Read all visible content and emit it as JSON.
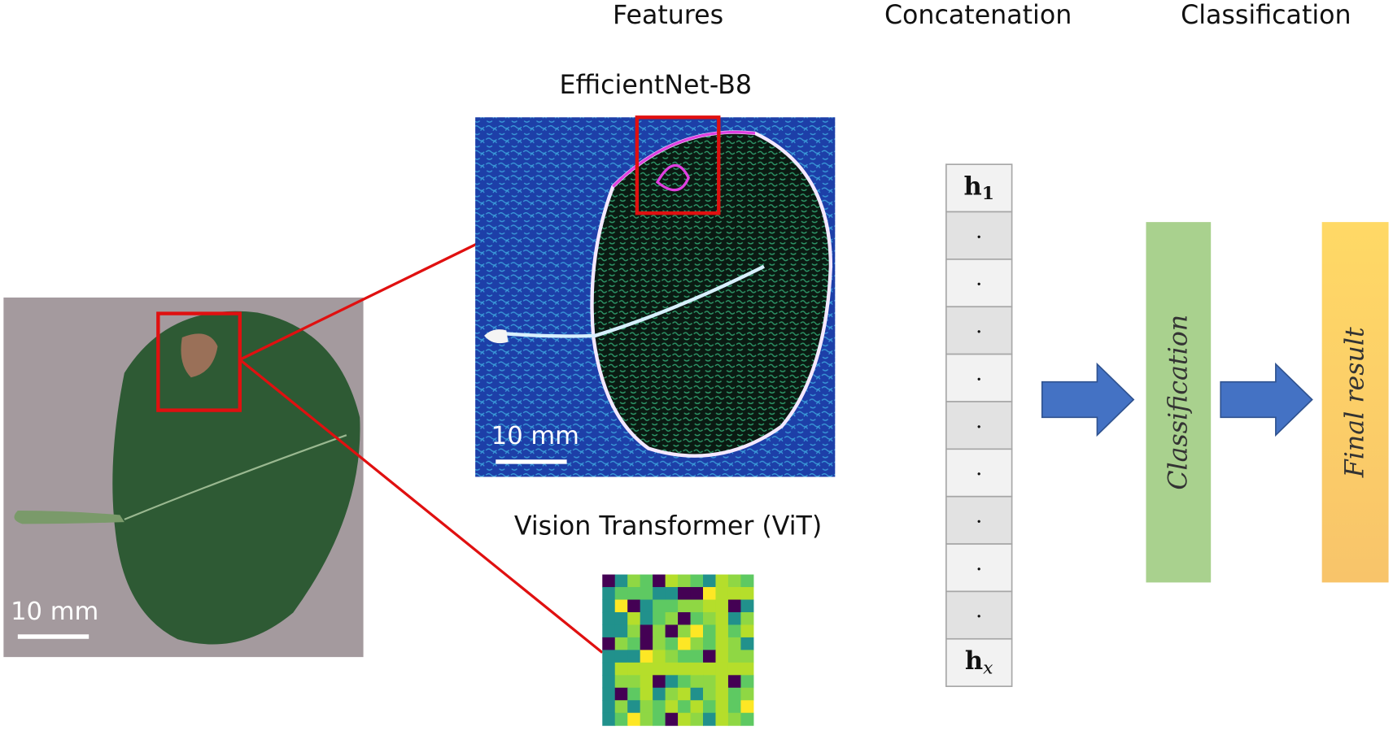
{
  "header": {
    "features": "Features",
    "concatenation": "Concatenation",
    "classification": "Classification"
  },
  "input": {
    "scale_label": "10 mm"
  },
  "features": {
    "efficientnet": {
      "title": "EfficientNet-B8",
      "scale_label": "10 mm"
    },
    "vit": {
      "title": "Vision Transformer (ViT)"
    }
  },
  "vector": {
    "cells": [
      {
        "symbol": "h",
        "subscript": "1"
      },
      ".",
      ".",
      ".",
      ".",
      ".",
      ".",
      ".",
      ".",
      ".",
      {
        "symbol": "h",
        "subscript": "x"
      }
    ]
  },
  "classifier": {
    "label": "Classification"
  },
  "output": {
    "label": "Final result"
  }
}
